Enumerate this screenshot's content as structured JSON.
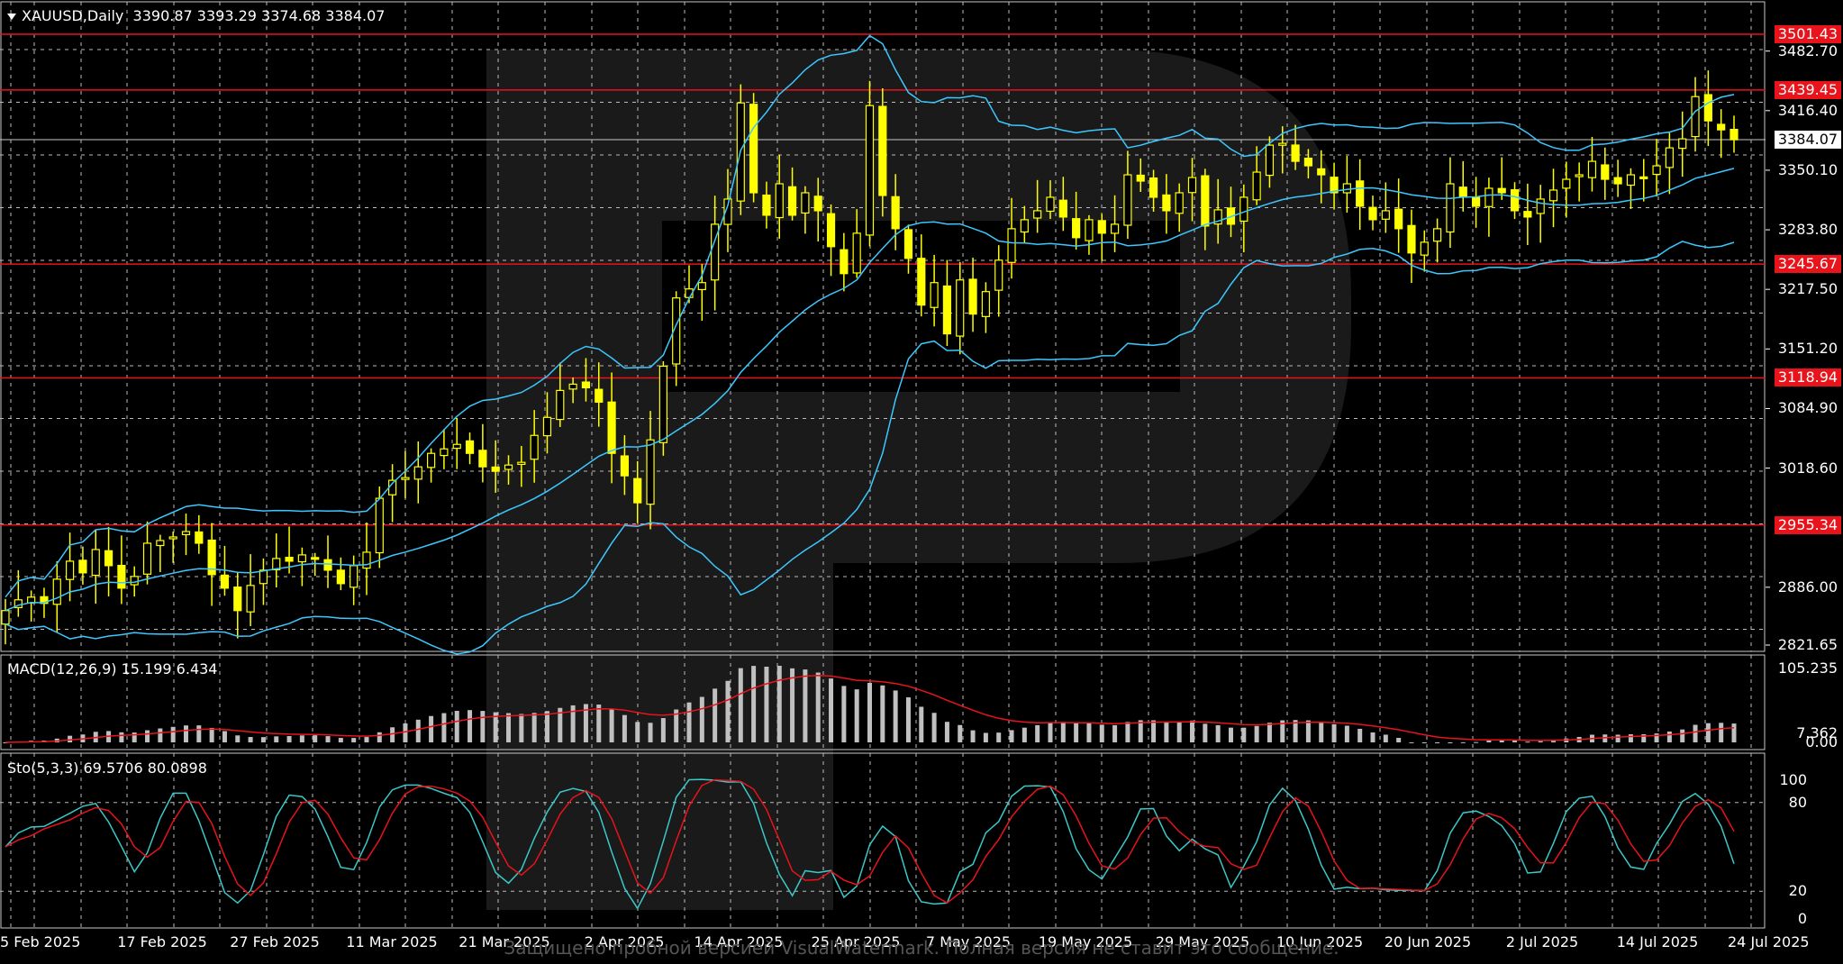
{
  "chart_data": {
    "type": "candlestick",
    "symbol": "XAUUSD,Daily",
    "ohlc_header": "3390.87 3393.29 3374.68 3384.07",
    "current_price": "3384.07",
    "y_ticks": [
      "3482.70",
      "3416.40",
      "3350.10",
      "3283.80",
      "3217.50",
      "3151.20",
      "3084.90",
      "3018.60",
      "2886.00",
      "2821.65"
    ],
    "levels": [
      "3501.43",
      "3439.45",
      "3245.67",
      "3118.94",
      "2955.34"
    ],
    "x_labels": [
      "5 Feb 2025",
      "17 Feb 2025",
      "27 Feb 2025",
      "11 Mar 2025",
      "21 Mar 2025",
      "2 Apr 2025",
      "14 Apr 2025",
      "25 Apr 2025",
      "7 May 2025",
      "19 May 2025",
      "29 May 2025",
      "10 Jun 2025",
      "20 Jun 2025",
      "2 Jul 2025",
      "14 Jul 2025",
      "24 Jul 2025"
    ],
    "candles_close": [
      2860,
      2872,
      2875,
      2868,
      2895,
      2915,
      2902,
      2928,
      2910,
      2885,
      2898,
      2935,
      2938,
      2942,
      2948,
      2935,
      2900,
      2885,
      2860,
      2888,
      2905,
      2918,
      2915,
      2922,
      2918,
      2905,
      2890,
      2910,
      2925,
      2985,
      3005,
      3008,
      3020,
      3035,
      3040,
      3045,
      3035,
      3020,
      3015,
      3022,
      3025,
      3055,
      3075,
      3105,
      3112,
      3108,
      3092,
      3035,
      3010,
      2980,
      3050,
      3132,
      3208,
      3218,
      3225,
      3290,
      3318,
      3425,
      3325,
      3300,
      3335,
      3300,
      3325,
      3305,
      3265,
      3235,
      3280,
      3422,
      3322,
      3285,
      3252,
      3200,
      3225,
      3168,
      3228,
      3190,
      3215,
      3250,
      3285,
      3295,
      3305,
      3320,
      3298,
      3275,
      3295,
      3280,
      3290,
      3345,
      3338,
      3320,
      3305,
      3325,
      3342,
      3288,
      3306,
      3290,
      3320,
      3348,
      3378,
      3380,
      3360,
      3355,
      3345,
      3325,
      3335,
      3310,
      3295,
      3305,
      3285,
      3258,
      3270,
      3285,
      3335,
      3320,
      3310,
      3330,
      3325,
      3305,
      3298,
      3318,
      3328,
      3340,
      3345,
      3360,
      3340,
      3335,
      3345,
      3342,
      3355,
      3375,
      3385,
      3432,
      3405,
      3395,
      3384
    ],
    "bollinger_period": 20,
    "macd": {
      "label": "MACD(12,26,9) 15.199 6.434",
      "ticks": [
        "105.235",
        "7.362",
        "0.00"
      ]
    },
    "stochastic": {
      "label": "Sto(5,3,3) 69.5706 80.0898",
      "ticks": [
        "100",
        "80",
        "20",
        "0"
      ]
    },
    "watermark": "Защищено пробной версией VisualWatermark. Полная версия не ставит это сообщение."
  }
}
